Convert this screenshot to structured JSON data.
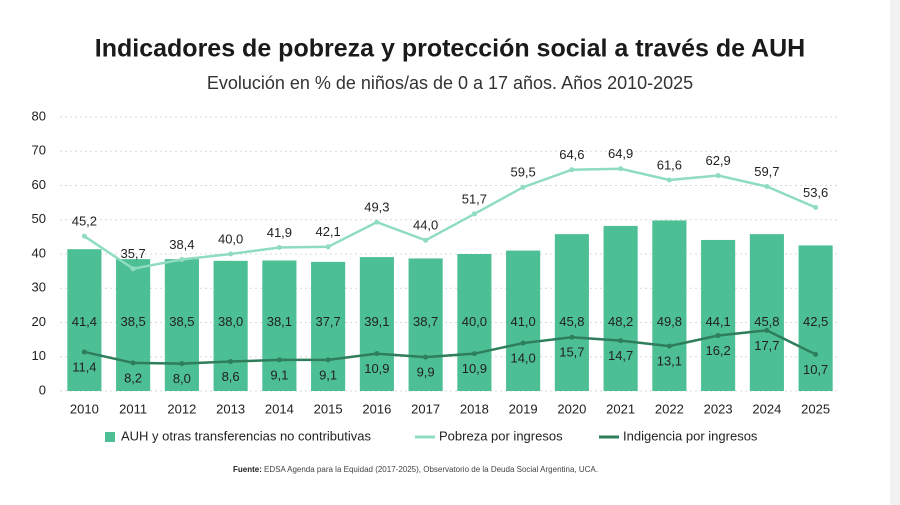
{
  "chart_data": {
    "type": "combo",
    "title": "Indicadores de pobreza y protección social a través de AUH",
    "subtitle": "Evolución en % de niños/as de 0 a 17 años. Años 2010-2025",
    "categories": [
      "2010",
      "2011",
      "2012",
      "2013",
      "2014",
      "2015",
      "2016",
      "2017",
      "2018",
      "2019",
      "2020",
      "2021",
      "2022",
      "2023",
      "2024",
      "2025"
    ],
    "series": [
      {
        "name": "AUH y otras transferencias no contributivas",
        "type": "bar",
        "color": "#4dbf94",
        "values": [
          41.4,
          38.5,
          38.5,
          38.0,
          38.1,
          37.7,
          39.1,
          38.7,
          40.0,
          41.0,
          45.8,
          48.2,
          49.8,
          44.1,
          45.8,
          42.5
        ],
        "value_labels": [
          "41,4",
          "38,5",
          "38,5",
          "38,0",
          "38,1",
          "37,7",
          "39,1",
          "38,7",
          "40,0",
          "41,0",
          "45,8",
          "48,2",
          "49,8",
          "44,1",
          "45,8",
          "42,5"
        ]
      },
      {
        "name": "Pobreza por ingresos",
        "type": "line",
        "color": "#8fdcc0",
        "values": [
          45.2,
          35.7,
          38.4,
          40.0,
          41.9,
          42.1,
          49.3,
          44.0,
          51.7,
          59.5,
          64.6,
          64.9,
          61.6,
          62.9,
          59.7,
          53.6
        ],
        "value_labels": [
          "45,2",
          "35,7",
          "38,4",
          "40,0",
          "41,9",
          "42,1",
          "49,3",
          "44,0",
          "51,7",
          "59,5",
          "64,6",
          "64,9",
          "61,6",
          "62,9",
          "59,7",
          "53,6"
        ]
      },
      {
        "name": "Indigencia por ingresos",
        "type": "line",
        "color": "#2e7d5b",
        "values": [
          11.4,
          8.2,
          8.0,
          8.6,
          9.1,
          9.1,
          10.9,
          9.9,
          10.9,
          14.0,
          15.7,
          14.7,
          13.1,
          16.2,
          17.7,
          10.7
        ],
        "value_labels": [
          "11,4",
          "8,2",
          "8,0",
          "8,6",
          "9,1",
          "9,1",
          "10,9",
          "9,9",
          "10,9",
          "14,0",
          "15,7",
          "14,7",
          "13,1",
          "16,2",
          "17,7",
          "10,7"
        ]
      }
    ],
    "ylim": [
      0,
      80
    ],
    "yticks": [
      0,
      10,
      20,
      30,
      40,
      50,
      60,
      70,
      80
    ],
    "grid": true,
    "legend": "bottom",
    "source_label": "Fuente:",
    "source": "EDSA Agenda para la Equidad (2017-2025), Observatorio de la Deuda Social Argentina, UCA."
  }
}
